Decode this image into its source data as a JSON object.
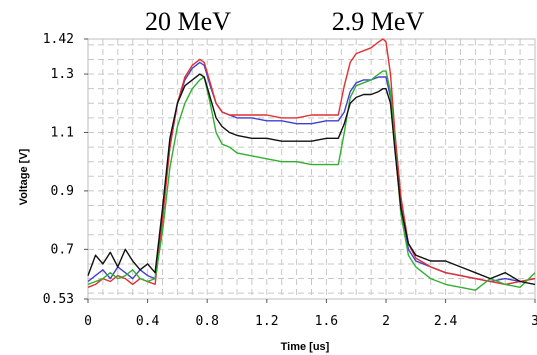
{
  "chart_data": {
    "type": "line",
    "title": "",
    "annotations": [
      "20 MeV",
      "2.9 MeV"
    ],
    "xlabel": "Time [us]",
    "ylabel": "Voltage [V]",
    "xlim": [
      0,
      3
    ],
    "ylim": [
      0.53,
      1.42
    ],
    "x_ticks": [
      0,
      0.4,
      0.8,
      1.2,
      1.6,
      2,
      2.4,
      3
    ],
    "x_tick_labels": [
      "0",
      "0.4",
      "0.8",
      "1.2",
      "1.6",
      "2",
      "2.4",
      "3"
    ],
    "y_ticks": [
      0.53,
      0.7,
      0.9,
      1.1,
      1.3,
      1.42
    ],
    "y_tick_labels": [
      "0.53",
      "0.7",
      "0.9",
      "1.1",
      "1.3",
      "1.42"
    ],
    "grid": true,
    "series": [
      {
        "color": "#4040d0",
        "x": [
          0,
          0.05,
          0.1,
          0.15,
          0.2,
          0.25,
          0.3,
          0.35,
          0.4,
          0.45,
          0.5,
          0.55,
          0.6,
          0.65,
          0.7,
          0.75,
          0.78,
          0.82,
          0.86,
          0.9,
          0.95,
          1.0,
          1.1,
          1.2,
          1.3,
          1.4,
          1.5,
          1.6,
          1.68,
          1.72,
          1.76,
          1.8,
          1.85,
          1.9,
          1.95,
          1.98,
          2.0,
          2.03,
          2.06,
          2.1,
          2.15,
          2.2,
          2.3,
          2.4,
          2.5,
          2.6,
          2.7,
          2.8,
          2.9,
          3.0
        ],
        "y": [
          0.59,
          0.61,
          0.63,
          0.6,
          0.64,
          0.62,
          0.6,
          0.63,
          0.61,
          0.6,
          0.82,
          1.05,
          1.2,
          1.28,
          1.32,
          1.34,
          1.33,
          1.26,
          1.2,
          1.17,
          1.16,
          1.15,
          1.15,
          1.14,
          1.14,
          1.13,
          1.13,
          1.14,
          1.14,
          1.17,
          1.24,
          1.27,
          1.28,
          1.28,
          1.29,
          1.29,
          1.29,
          1.22,
          1.05,
          0.85,
          0.7,
          0.66,
          0.64,
          0.62,
          0.61,
          0.6,
          0.59,
          0.6,
          0.59,
          0.6
        ]
      },
      {
        "color": "#e03030",
        "x": [
          0,
          0.05,
          0.1,
          0.15,
          0.2,
          0.25,
          0.3,
          0.35,
          0.4,
          0.45,
          0.5,
          0.55,
          0.6,
          0.65,
          0.7,
          0.75,
          0.78,
          0.82,
          0.86,
          0.9,
          0.95,
          1.0,
          1.1,
          1.2,
          1.3,
          1.4,
          1.5,
          1.6,
          1.68,
          1.72,
          1.76,
          1.8,
          1.85,
          1.9,
          1.95,
          1.98,
          2.0,
          2.03,
          2.06,
          2.1,
          2.15,
          2.2,
          2.3,
          2.4,
          2.5,
          2.6,
          2.7,
          2.8,
          2.9,
          3.0
        ],
        "y": [
          0.57,
          0.58,
          0.6,
          0.59,
          0.61,
          0.6,
          0.58,
          0.6,
          0.59,
          0.58,
          0.8,
          1.05,
          1.2,
          1.29,
          1.33,
          1.35,
          1.34,
          1.27,
          1.2,
          1.17,
          1.16,
          1.16,
          1.16,
          1.16,
          1.15,
          1.15,
          1.16,
          1.16,
          1.16,
          1.26,
          1.34,
          1.37,
          1.38,
          1.39,
          1.41,
          1.42,
          1.41,
          1.3,
          1.1,
          0.88,
          0.72,
          0.67,
          0.64,
          0.62,
          0.61,
          0.6,
          0.59,
          0.58,
          0.59,
          0.6
        ]
      },
      {
        "color": "#30b030",
        "x": [
          0,
          0.05,
          0.1,
          0.15,
          0.2,
          0.25,
          0.3,
          0.35,
          0.4,
          0.45,
          0.5,
          0.55,
          0.6,
          0.65,
          0.7,
          0.75,
          0.78,
          0.82,
          0.86,
          0.9,
          0.95,
          1.0,
          1.1,
          1.2,
          1.3,
          1.4,
          1.5,
          1.6,
          1.68,
          1.72,
          1.76,
          1.8,
          1.85,
          1.9,
          1.95,
          1.98,
          2.0,
          2.03,
          2.06,
          2.1,
          2.15,
          2.2,
          2.3,
          2.4,
          2.5,
          2.6,
          2.7,
          2.8,
          2.9,
          3.0
        ],
        "y": [
          0.58,
          0.59,
          0.6,
          0.62,
          0.6,
          0.61,
          0.63,
          0.6,
          0.59,
          0.6,
          0.76,
          0.98,
          1.12,
          1.2,
          1.25,
          1.28,
          1.29,
          1.2,
          1.1,
          1.06,
          1.05,
          1.03,
          1.02,
          1.01,
          1.0,
          1.0,
          0.99,
          0.99,
          0.99,
          1.1,
          1.22,
          1.26,
          1.27,
          1.28,
          1.3,
          1.31,
          1.31,
          1.24,
          1.06,
          0.82,
          0.68,
          0.64,
          0.6,
          0.58,
          0.57,
          0.56,
          0.6,
          0.58,
          0.57,
          0.62
        ]
      },
      {
        "color": "#111111",
        "x": [
          0,
          0.05,
          0.1,
          0.15,
          0.2,
          0.25,
          0.3,
          0.35,
          0.4,
          0.45,
          0.5,
          0.55,
          0.6,
          0.65,
          0.7,
          0.75,
          0.78,
          0.82,
          0.86,
          0.9,
          0.95,
          1.0,
          1.1,
          1.2,
          1.3,
          1.4,
          1.5,
          1.6,
          1.68,
          1.72,
          1.76,
          1.8,
          1.85,
          1.9,
          1.95,
          1.98,
          2.0,
          2.03,
          2.06,
          2.1,
          2.15,
          2.2,
          2.3,
          2.4,
          2.5,
          2.6,
          2.7,
          2.8,
          2.9,
          3.0
        ],
        "y": [
          0.61,
          0.68,
          0.65,
          0.69,
          0.64,
          0.7,
          0.66,
          0.63,
          0.65,
          0.62,
          0.84,
          1.08,
          1.2,
          1.26,
          1.28,
          1.3,
          1.29,
          1.22,
          1.15,
          1.12,
          1.1,
          1.09,
          1.08,
          1.08,
          1.07,
          1.07,
          1.07,
          1.08,
          1.08,
          1.13,
          1.2,
          1.22,
          1.23,
          1.23,
          1.24,
          1.25,
          1.25,
          1.2,
          1.04,
          0.84,
          0.72,
          0.68,
          0.66,
          0.66,
          0.64,
          0.62,
          0.6,
          0.62,
          0.59,
          0.58
        ]
      }
    ]
  }
}
